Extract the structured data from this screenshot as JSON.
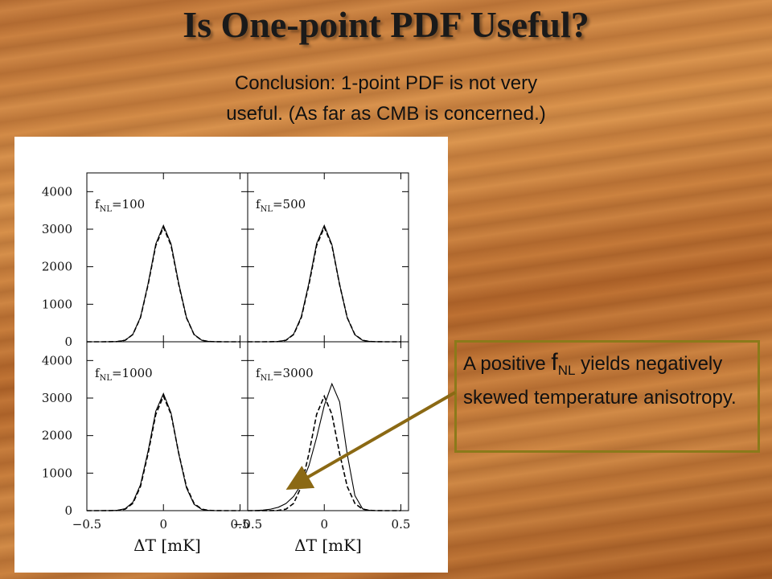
{
  "slide": {
    "title": "Is One-point PDF Useful?",
    "subtitle": [
      "Conclusion: 1-point PDF is not very",
      "useful. (As far as CMB is concerned.)"
    ],
    "callout": [
      "A positive ",
      "f",
      "NL",
      " yields negatively skewed temperature anisotropy."
    ]
  },
  "chart_data": [
    {
      "type": "line",
      "annotation": [
        "f",
        "NL",
        "=100"
      ],
      "x": [
        -0.5,
        -0.45,
        -0.4,
        -0.35,
        -0.3,
        -0.25,
        -0.2,
        -0.15,
        -0.1,
        -0.05,
        0,
        0.05,
        0.1,
        0.15,
        0.2,
        0.25,
        0.3,
        0.35,
        0.4,
        0.45,
        0.5
      ],
      "series": [
        {
          "color": "#000000",
          "dash": false,
          "values": [
            0,
            0,
            0,
            1,
            6,
            41,
            195,
            653,
            1551,
            2607,
            3100,
            2607,
            1551,
            653,
            195,
            41,
            6,
            1,
            0,
            0,
            0
          ]
        },
        {
          "color": "#000000",
          "dash": true,
          "values": [
            0,
            0,
            0,
            1,
            6,
            40,
            192,
            642,
            1525,
            2565,
            3050,
            2565,
            1525,
            642,
            192,
            40,
            6,
            1,
            0,
            0,
            0
          ]
        }
      ],
      "xlim": [
        -0.5,
        0.55
      ],
      "ylim": [
        0,
        4500
      ],
      "xticks": [
        -0.5,
        0,
        0.5
      ],
      "yticks": [
        0,
        1000,
        2000,
        3000,
        4000
      ]
    },
    {
      "type": "line",
      "annotation": [
        "f",
        "NL",
        "=500"
      ],
      "x": [
        -0.5,
        -0.45,
        -0.4,
        -0.35,
        -0.3,
        -0.25,
        -0.2,
        -0.15,
        -0.1,
        -0.05,
        0,
        0.05,
        0.1,
        0.15,
        0.2,
        0.25,
        0.3,
        0.35,
        0.4,
        0.45,
        0.5
      ],
      "series": [
        {
          "color": "#000000",
          "dash": false,
          "values": [
            0,
            0,
            0,
            1,
            7,
            45,
            205,
            670,
            1570,
            2620,
            3100,
            2590,
            1530,
            635,
            185,
            38,
            6,
            1,
            0,
            0,
            0
          ]
        },
        {
          "color": "#000000",
          "dash": true,
          "values": [
            0,
            0,
            0,
            1,
            6,
            40,
            192,
            642,
            1525,
            2565,
            3050,
            2565,
            1525,
            642,
            192,
            40,
            6,
            1,
            0,
            0,
            0
          ]
        }
      ],
      "xlim": [
        -0.5,
        0.55
      ],
      "ylim": [
        0,
        4500
      ],
      "xticks": [
        -0.5,
        0,
        0.5
      ],
      "yticks": [
        0,
        1000,
        2000,
        3000,
        4000
      ]
    },
    {
      "type": "line",
      "annotation": [
        "f",
        "NL",
        "=1000"
      ],
      "x": [
        -0.5,
        -0.45,
        -0.4,
        -0.35,
        -0.3,
        -0.25,
        -0.2,
        -0.15,
        -0.1,
        -0.05,
        0,
        0.05,
        0.1,
        0.15,
        0.2,
        0.25,
        0.3,
        0.35,
        0.4,
        0.45,
        0.5
      ],
      "series": [
        {
          "color": "#000000",
          "dash": false,
          "values": [
            0,
            0,
            1,
            2,
            9,
            52,
            220,
            690,
            1590,
            2650,
            3120,
            2600,
            1510,
            610,
            170,
            33,
            5,
            0,
            0,
            0,
            0
          ]
        },
        {
          "color": "#000000",
          "dash": true,
          "values": [
            0,
            0,
            0,
            1,
            6,
            40,
            192,
            642,
            1525,
            2565,
            3050,
            2565,
            1525,
            642,
            192,
            40,
            6,
            1,
            0,
            0,
            0
          ]
        }
      ],
      "xlim": [
        -0.5,
        0.55
      ],
      "ylim": [
        0,
        4500
      ],
      "xticks": [
        {
          "value": -0.5,
          "label": "−0.5"
        },
        0,
        0.5
      ],
      "yticks": [
        0,
        1000,
        2000,
        3000,
        4000
      ],
      "xlabel": "ΔT [mK]"
    },
    {
      "type": "line",
      "annotation": [
        "f",
        "NL",
        "=3000"
      ],
      "x": [
        -0.5,
        -0.45,
        -0.4,
        -0.35,
        -0.3,
        -0.25,
        -0.2,
        -0.15,
        -0.1,
        -0.05,
        0,
        0.05,
        0.1,
        0.15,
        0.2,
        0.25,
        0.3,
        0.35,
        0.4,
        0.45,
        0.5
      ],
      "series": [
        {
          "color": "#000000",
          "dash": false,
          "values": [
            0,
            5,
            15,
            40,
            90,
            190,
            380,
            700,
            1200,
            1950,
            2800,
            3380,
            2900,
            1500,
            400,
            50,
            5,
            0,
            0,
            0,
            0
          ]
        },
        {
          "color": "#000000",
          "dash": true,
          "values": [
            0,
            0,
            0,
            1,
            6,
            40,
            192,
            642,
            1525,
            2565,
            3050,
            2565,
            1525,
            642,
            192,
            40,
            6,
            1,
            0,
            0,
            0
          ]
        }
      ],
      "xlim": [
        -0.5,
        0.55
      ],
      "ylim": [
        0,
        4500
      ],
      "xticks": [
        {
          "value": -0.5,
          "label": "−0.5"
        },
        0,
        0.5
      ],
      "yticks": [
        0,
        1000,
        2000,
        3000,
        4000
      ],
      "xlabel": "ΔT [mK]"
    }
  ]
}
